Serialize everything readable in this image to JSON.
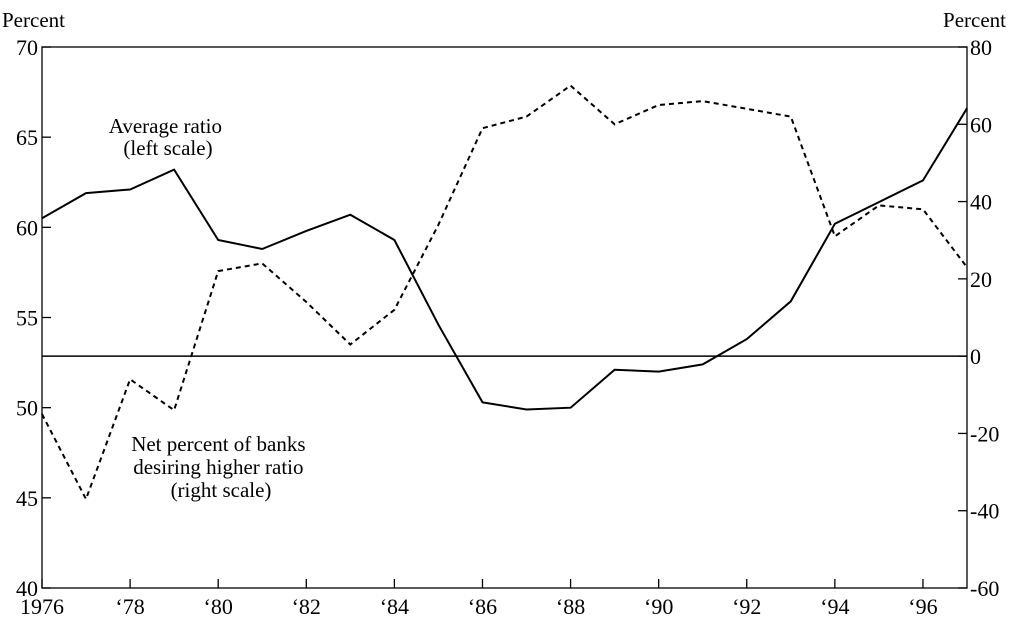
{
  "chart_data": {
    "type": "line",
    "left_axis": {
      "unit_label": "Percent",
      "range": [
        40,
        70
      ],
      "ticks": [
        40,
        45,
        50,
        55,
        60,
        65,
        70
      ],
      "tick_labels": [
        "40",
        "45",
        "50",
        "55",
        "60",
        "65",
        "70"
      ]
    },
    "right_axis": {
      "unit_label": "Percent",
      "range": [
        -60,
        80
      ],
      "ticks": [
        -60,
        -40,
        -20,
        0,
        20,
        40,
        60,
        80
      ],
      "tick_labels": [
        "-60",
        "-40",
        "-20",
        "0",
        "20",
        "40",
        "60",
        "80"
      ]
    },
    "x_axis": {
      "range": [
        1976,
        1997
      ],
      "ticks": [
        1976,
        1978,
        1980,
        1982,
        1984,
        1986,
        1988,
        1990,
        1992,
        1994,
        1996
      ],
      "tick_labels": [
        "1976",
        "‘78",
        "‘80",
        "‘82",
        "‘84",
        "‘86",
        "‘88",
        "‘90",
        "‘92",
        "‘94",
        "‘96"
      ]
    },
    "zero_line": 0,
    "grid": false,
    "series": [
      {
        "name": "Average ratio (left scale)",
        "axis": "left",
        "style": "solid",
        "color": "#000000",
        "x": [
          1976,
          1977,
          1978,
          1979,
          1980,
          1981,
          1982,
          1983,
          1984,
          1985,
          1986,
          1987,
          1988,
          1989,
          1990,
          1991,
          1992,
          1993,
          1994,
          1995,
          1996,
          1997
        ],
        "y": [
          60.5,
          61.9,
          62.1,
          63.2,
          59.3,
          58.8,
          59.8,
          60.7,
          59.3,
          54.6,
          50.3,
          49.9,
          50.0,
          52.1,
          52.0,
          52.4,
          53.8,
          55.9,
          60.2,
          61.4,
          62.6,
          66.6
        ]
      },
      {
        "name": "Net percent of banks desiring higher ratio (right scale)",
        "axis": "right",
        "style": "dashed",
        "color": "#000000",
        "x": [
          1976,
          1977,
          1978,
          1979,
          1980,
          1981,
          1982,
          1983,
          1984,
          1985,
          1986,
          1987,
          1988,
          1989,
          1990,
          1991,
          1992,
          1993,
          1994,
          1995,
          1996,
          1997
        ],
        "y": [
          -15,
          -37,
          -6,
          -14,
          22,
          24,
          14,
          3,
          12,
          34,
          59,
          62,
          70,
          60,
          65,
          66,
          64,
          62,
          31,
          39,
          38,
          23
        ]
      }
    ],
    "annotations": [
      {
        "series": 0,
        "lines": [
          "Average ratio",
          "(left scale)"
        ]
      },
      {
        "series": 1,
        "lines": [
          "Net percent of banks",
          "desiring higher ratio",
          "(right scale)"
        ]
      }
    ]
  }
}
